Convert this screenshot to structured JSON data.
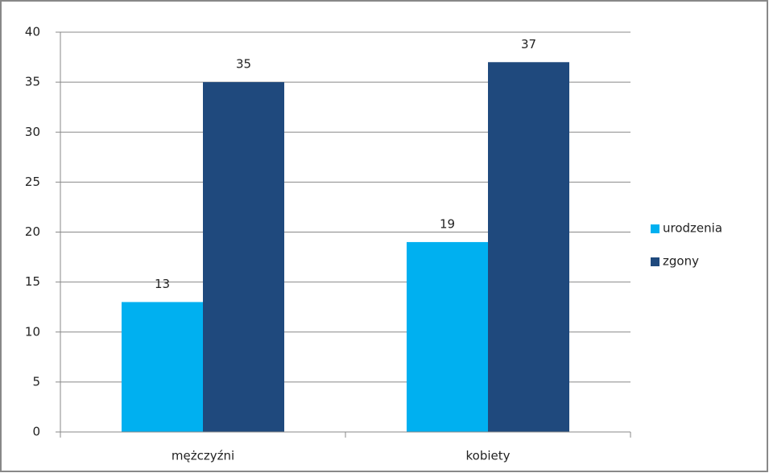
{
  "chart_data": {
    "type": "bar",
    "categories": [
      "mężczyźni",
      "kobiety"
    ],
    "series": [
      {
        "name": "urodzenia",
        "color": "#00b0f0",
        "values": [
          13,
          19
        ]
      },
      {
        "name": "zgony",
        "color": "#1f497d",
        "values": [
          35,
          37
        ]
      }
    ],
    "ylim": [
      0,
      40
    ],
    "yticks": [
      0,
      5,
      10,
      15,
      20,
      25,
      30,
      35,
      40
    ],
    "grid": true,
    "legend": "right"
  }
}
